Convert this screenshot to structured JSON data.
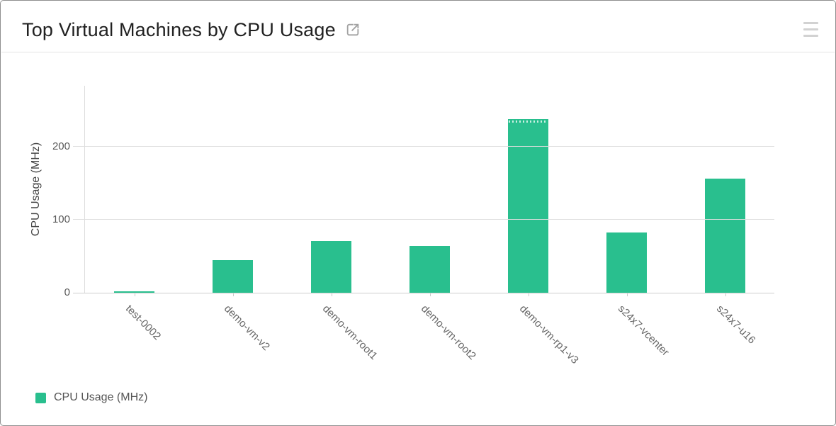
{
  "header": {
    "title": "Top Virtual Machines by CPU Usage",
    "expand_icon": "open-in-new-icon",
    "menu_icon": "hamburger-menu-icon"
  },
  "legend": {
    "label": "CPU Usage (MHz)"
  },
  "colors": {
    "bar": "#29bf8e",
    "title_text": "#212121",
    "axis_text": "#595959",
    "gridline": "#dedede",
    "icon_gray": "#a2a2a2"
  },
  "chart_data": {
    "type": "bar",
    "title": "Top Virtual Machines by CPU Usage",
    "categories": [
      "test-0002",
      "demo-vm-v2",
      "demo-vm-root1",
      "demo-vm-root2",
      "demo-vm-rp1-v3",
      "s24x7-vcenter",
      "s24x7-u16"
    ],
    "values": [
      2,
      45,
      71,
      64,
      237,
      82,
      156
    ],
    "series_name": "CPU Usage (MHz)",
    "xlabel": "",
    "ylabel": "CPU Usage (MHz)",
    "yticks": [
      0,
      100,
      200
    ],
    "ytick_labels": [
      "0",
      "100",
      "200"
    ],
    "ylim": [
      0,
      283
    ],
    "grid": "horizontal",
    "legend_position": "bottom-left",
    "bar_color": "#29bf8e",
    "xtick_rotation": 45,
    "dotted_cap_index": 4
  }
}
